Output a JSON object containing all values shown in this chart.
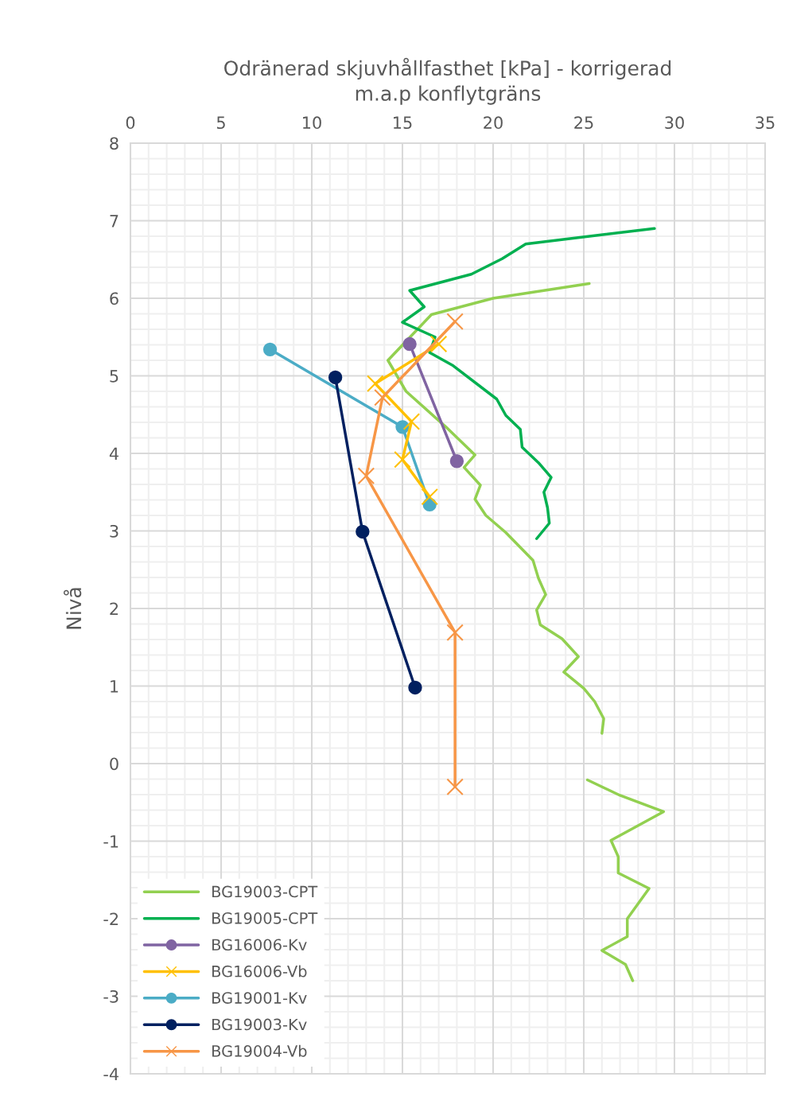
{
  "chart_data": {
    "type": "line",
    "xlabel": "Odränerad skjuvhållfasthet [kPa] - korrigerad m.a.p konflytgräns",
    "ylabel": "Nivå",
    "xlim": [
      0,
      35
    ],
    "xticks": [
      0,
      5,
      10,
      15,
      20,
      25,
      30,
      35
    ],
    "ylim": [
      -4,
      8
    ],
    "yticks": [
      -4,
      -3,
      -2,
      -1,
      0,
      1,
      2,
      3,
      4,
      5,
      6,
      7,
      8
    ],
    "grid": true,
    "legend": "bottom left",
    "series": [
      {
        "name": "BG19003-CPT",
        "color": "#92d050",
        "marker": "none",
        "x": [
          25.3,
          20.0,
          16.6,
          14.2,
          15.2,
          17.4,
          19.0,
          18.4,
          19.3,
          19.0,
          19.6,
          20.7,
          22.2,
          22.5,
          22.9,
          22.4,
          22.6,
          23.8,
          24.7,
          23.9,
          25.0,
          25.6,
          26.1,
          26.0,
          null,
          25.2,
          27.0,
          29.4,
          26.5,
          26.9,
          26.9,
          28.6,
          27.4,
          27.4,
          26.0,
          27.3,
          27.7
        ],
        "values": [
          6.19,
          6.0,
          5.79,
          5.2,
          4.8,
          4.34,
          3.98,
          3.82,
          3.59,
          3.41,
          3.2,
          2.98,
          2.62,
          2.39,
          2.18,
          1.98,
          1.79,
          1.61,
          1.38,
          1.18,
          0.97,
          0.8,
          0.58,
          0.39,
          null,
          -0.21,
          -0.41,
          -0.62,
          -0.99,
          -1.2,
          -1.41,
          -1.61,
          -2.0,
          -2.23,
          -2.41,
          -2.59,
          -2.8
        ]
      },
      {
        "name": "BG19005-CPT",
        "color": "#00b050",
        "marker": "none",
        "x": [
          28.9,
          21.8,
          20.5,
          18.8,
          15.4,
          16.2,
          15.0,
          16.8,
          16.5,
          17.8,
          20.2,
          20.7,
          21.5,
          21.6,
          22.5,
          23.2,
          22.8,
          23.0,
          23.1,
          22.4
        ],
        "values": [
          6.9,
          6.7,
          6.51,
          6.31,
          6.1,
          5.89,
          5.69,
          5.5,
          5.3,
          5.13,
          4.7,
          4.49,
          4.31,
          4.08,
          3.88,
          3.69,
          3.5,
          3.3,
          3.1,
          2.9
        ]
      },
      {
        "name": "BG16006-Kv",
        "color": "#8064a2",
        "marker": "circle",
        "x": [
          15.4,
          18.0
        ],
        "values": [
          5.41,
          3.9
        ]
      },
      {
        "name": "BG16006-Vb",
        "color": "#ffc000",
        "marker": "cross",
        "x": [
          17.0,
          13.5,
          15.5,
          15.0,
          16.5
        ],
        "values": [
          5.41,
          4.9,
          4.41,
          3.92,
          3.44
        ]
      },
      {
        "name": "BG19001-Kv",
        "color": "#4bacc6",
        "marker": "circle",
        "x": [
          7.7,
          15.0,
          16.5
        ],
        "values": [
          5.34,
          4.34,
          3.34
        ]
      },
      {
        "name": "BG19003-Kv",
        "color": "#002060",
        "marker": "circle",
        "x": [
          11.3,
          12.8,
          15.7
        ],
        "values": [
          4.98,
          2.99,
          0.98
        ]
      },
      {
        "name": "BG19004-Vb",
        "color": "#f79646",
        "marker": "cross",
        "x": [
          17.9,
          13.9,
          13.0,
          17.9,
          17.9
        ],
        "values": [
          5.7,
          4.72,
          3.71,
          1.69,
          -0.3
        ]
      }
    ]
  }
}
